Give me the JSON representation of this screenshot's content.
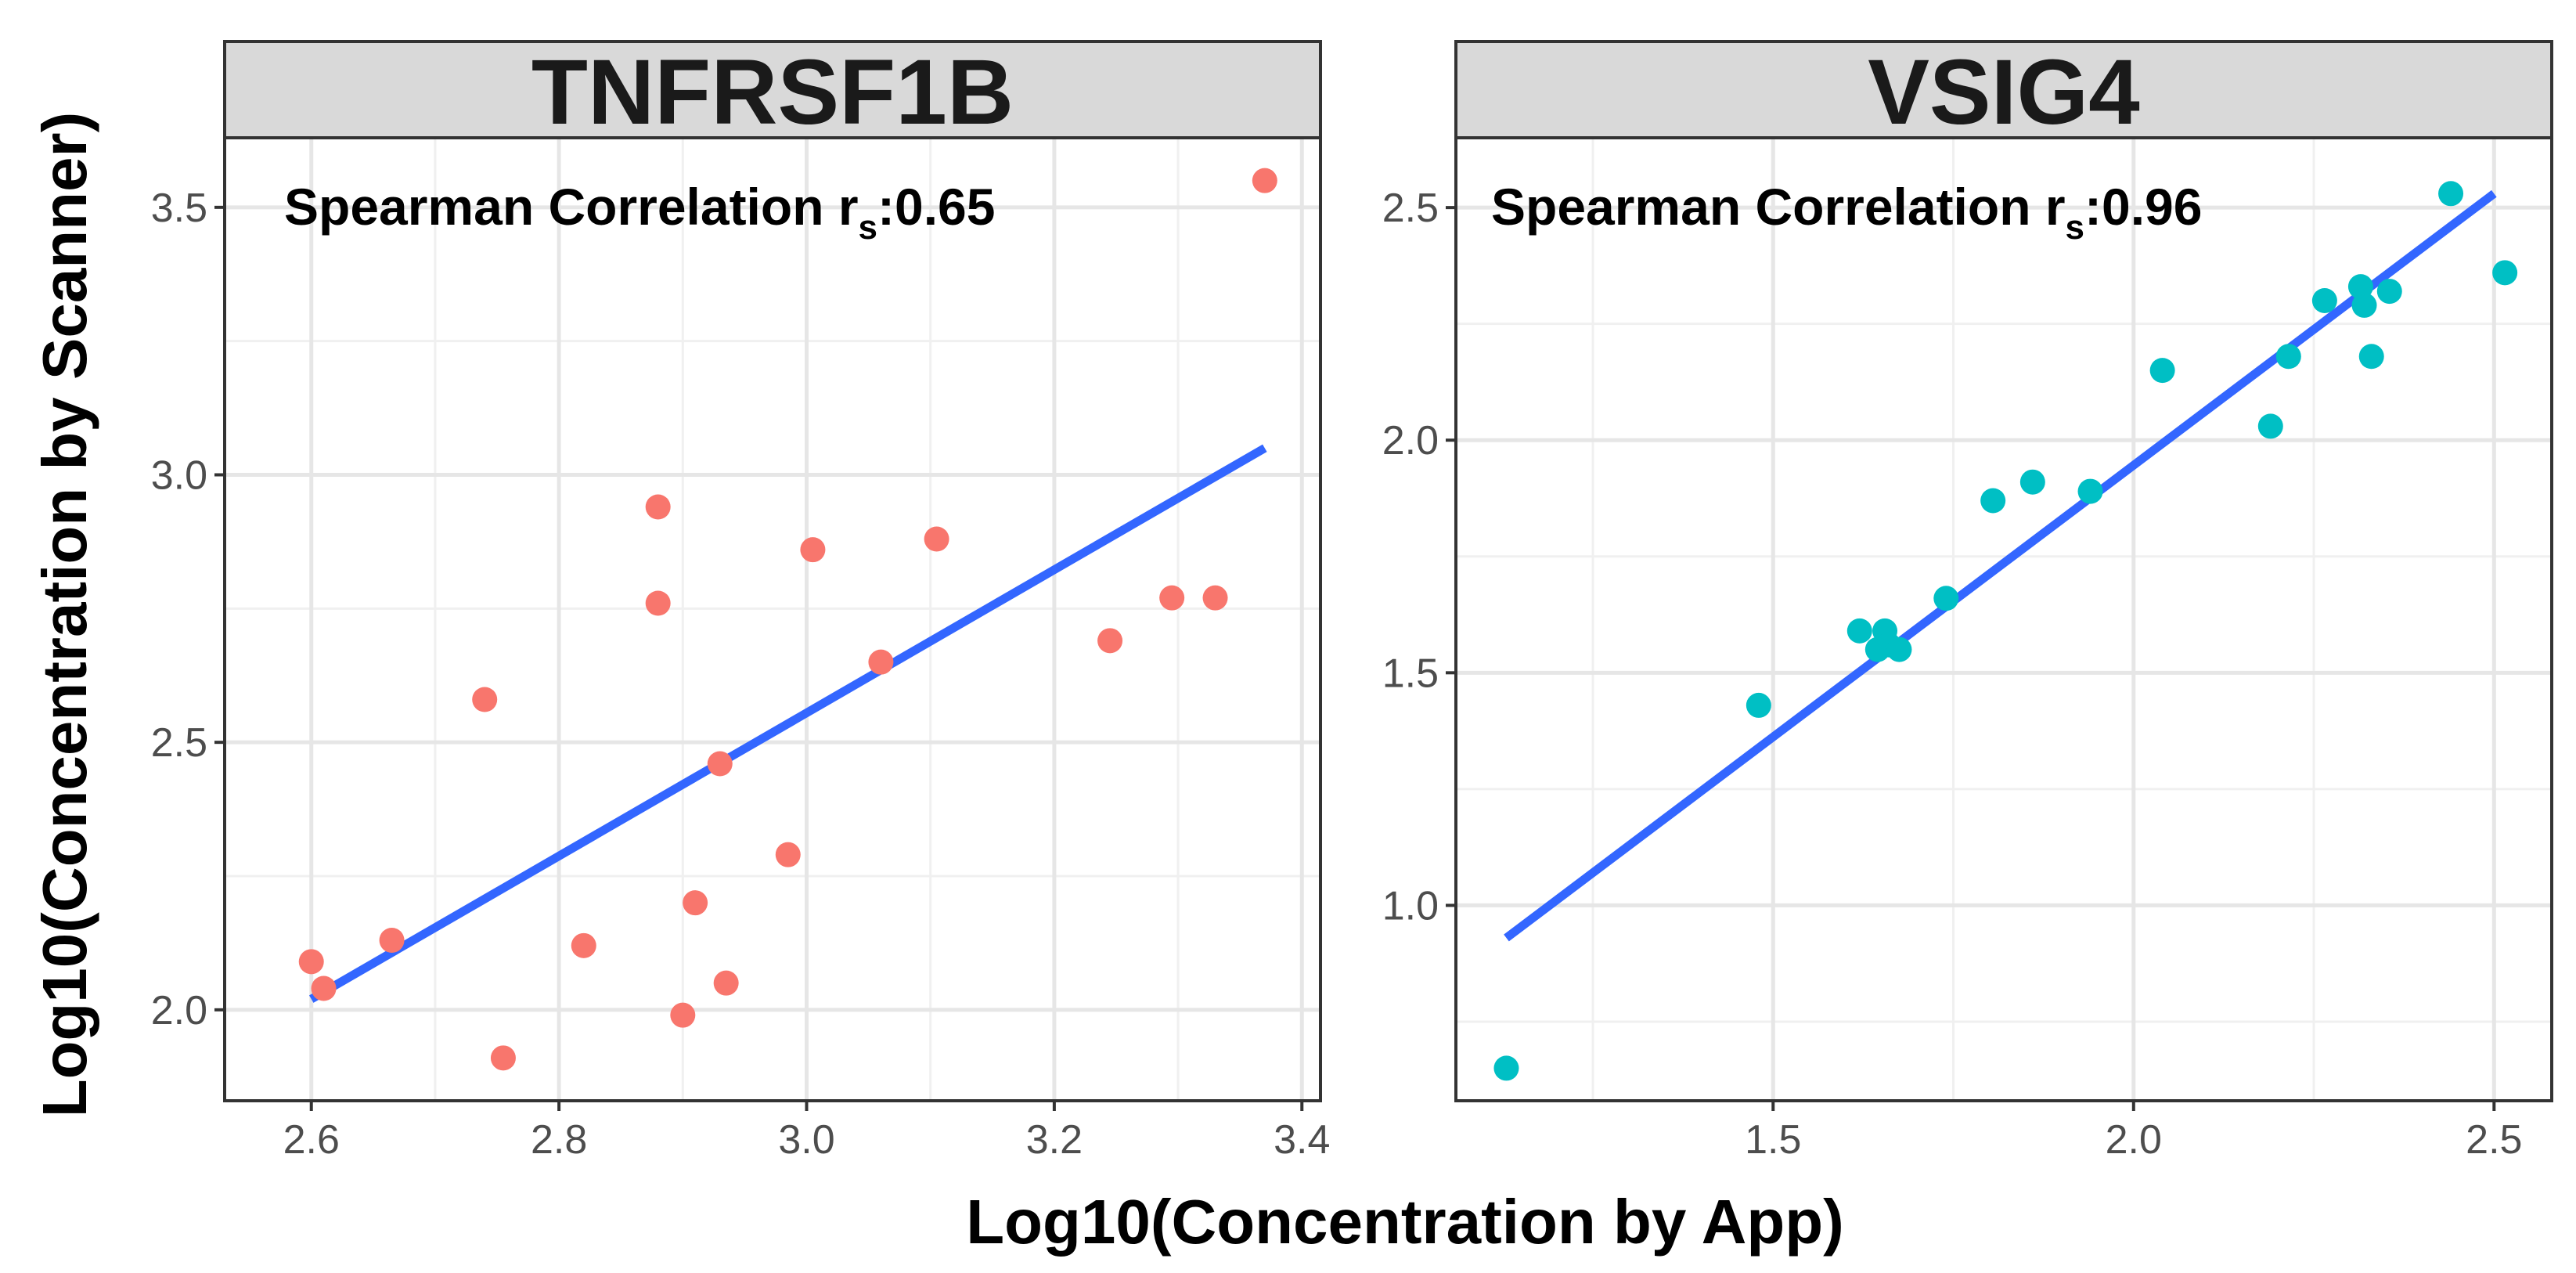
{
  "figure": {
    "xlabel": "Log10(Concentration by App)",
    "ylabel": "Log10(Concentration by Scanner)"
  },
  "chart_data": [
    {
      "type": "scatter",
      "title": "TNFRSF1B",
      "annotation": {
        "prefix": "Spearman Correlation r",
        "subscript": "s",
        "suffix": ":0.65"
      },
      "point_color": "#F8766D",
      "line_color": "#3366FF",
      "xlim": [
        2.53,
        3.415
      ],
      "ylim": [
        1.83,
        3.63
      ],
      "xticks": [
        2.6,
        2.8,
        3.0,
        3.2,
        3.4
      ],
      "xtick_labels": [
        "2.6",
        "2.8",
        "3.0",
        "3.2",
        "3.4"
      ],
      "yticks": [
        2.0,
        2.5,
        3.0,
        3.5
      ],
      "ytick_labels": [
        "2.0",
        "2.5",
        "3.0",
        "3.5"
      ],
      "x": [
        2.6,
        2.61,
        2.665,
        2.74,
        2.755,
        2.82,
        2.88,
        2.88,
        2.9,
        2.91,
        2.93,
        2.935,
        2.985,
        3.005,
        3.06,
        3.105,
        3.245,
        3.295,
        3.33,
        3.37
      ],
      "y": [
        2.09,
        2.04,
        2.13,
        2.58,
        1.91,
        2.12,
        2.76,
        2.94,
        1.99,
        2.2,
        2.46,
        2.05,
        2.29,
        2.86,
        2.65,
        2.88,
        2.69,
        2.77,
        2.77,
        3.55
      ],
      "fit_line": {
        "x": [
          2.6,
          3.37
        ],
        "y": [
          2.02,
          3.05
        ]
      }
    },
    {
      "type": "scatter",
      "title": "VSIG4",
      "annotation": {
        "prefix": "Spearman Correlation r",
        "subscript": "s",
        "suffix": ":0.96"
      },
      "point_color": "#00BFC4",
      "line_color": "#3366FF",
      "xlim": [
        1.06,
        2.58
      ],
      "ylim": [
        0.58,
        2.65
      ],
      "xticks": [
        1.5,
        2.0,
        2.5
      ],
      "xtick_labels": [
        "1.5",
        "2.0",
        "2.5"
      ],
      "yticks": [
        1.0,
        1.5,
        2.0,
        2.5
      ],
      "ytick_labels": [
        "1.0",
        "1.5",
        "2.0",
        "2.5"
      ],
      "x": [
        1.13,
        1.48,
        1.62,
        1.645,
        1.655,
        1.66,
        1.675,
        1.74,
        1.805,
        1.86,
        1.94,
        2.04,
        2.19,
        2.215,
        2.265,
        2.315,
        2.32,
        2.33,
        2.355,
        2.44,
        2.515
      ],
      "y": [
        0.65,
        1.43,
        1.59,
        1.55,
        1.59,
        1.56,
        1.55,
        1.66,
        1.87,
        1.91,
        1.89,
        2.15,
        2.03,
        2.18,
        2.3,
        2.33,
        2.29,
        2.18,
        2.32,
        2.53,
        2.36
      ],
      "fit_line": {
        "x": [
          1.13,
          2.5
        ],
        "y": [
          0.93,
          2.53
        ]
      }
    }
  ]
}
